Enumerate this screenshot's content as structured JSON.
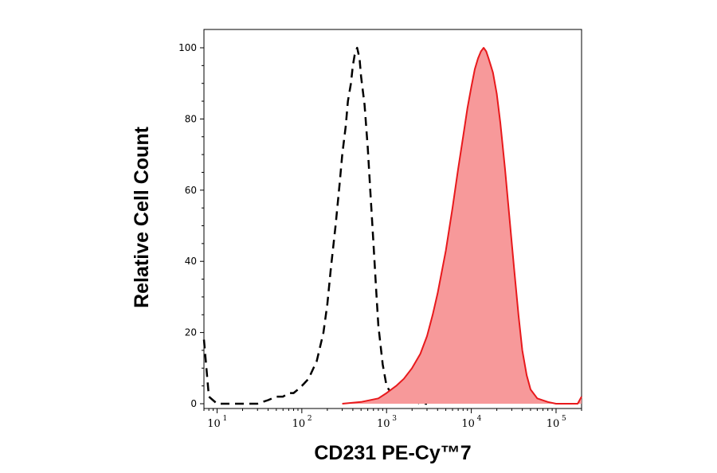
{
  "chart_data": {
    "type": "area",
    "xlabel": "CD231 PE-Cy™7",
    "ylabel": "Relative Cell Count",
    "x_scale": "log",
    "xlim": [
      7,
      200000
    ],
    "ylim": [
      0,
      100
    ],
    "yticks": [
      "0",
      "20",
      "40",
      "60",
      "80",
      "100"
    ],
    "xticks": [
      {
        "base": "10",
        "exp": "1"
      },
      {
        "base": "10",
        "exp": "2"
      },
      {
        "base": "10",
        "exp": "3"
      },
      {
        "base": "10",
        "exp": "4"
      },
      {
        "base": "10",
        "exp": "5"
      }
    ],
    "grid": false,
    "colors": {
      "stained": "#e8191c",
      "stained_fill": "#f7999a",
      "control": "#000000"
    },
    "series": [
      {
        "style": "dashed-black",
        "x": [
          7,
          8,
          10,
          12,
          20,
          30,
          40,
          50,
          60,
          70,
          80,
          90,
          100,
          120,
          150,
          180,
          200,
          220,
          250,
          280,
          300,
          330,
          350,
          380,
          400,
          420,
          450,
          480,
          500,
          550,
          600,
          650,
          700,
          750,
          800,
          900,
          1000,
          1200,
          1500,
          2000,
          2500,
          3000
        ],
        "y": [
          18,
          2,
          0,
          0,
          0,
          0,
          1,
          2,
          2,
          3,
          3,
          4,
          5,
          7,
          12,
          20,
          28,
          38,
          50,
          62,
          70,
          78,
          85,
          90,
          95,
          98,
          100,
          97,
          92,
          84,
          72,
          58,
          45,
          33,
          22,
          11,
          5,
          2,
          1,
          1,
          0,
          0
        ]
      },
      {
        "style": "filled-red",
        "x": [
          300,
          500,
          800,
          1000,
          1300,
          1600,
          2000,
          2500,
          3000,
          3500,
          4000,
          5000,
          6000,
          7000,
          8000,
          9000,
          10000,
          11000,
          12000,
          13000,
          14000,
          15000,
          16000,
          17000,
          18000,
          20000,
          22000,
          25000,
          28000,
          32000,
          36000,
          40000,
          45000,
          50000,
          60000,
          80000,
          100000,
          180000,
          200000
        ],
        "y": [
          0,
          0.5,
          1.5,
          3,
          5,
          7,
          10,
          14,
          19,
          25,
          31,
          43,
          55,
          66,
          75,
          83,
          89,
          94,
          97,
          99,
          100,
          99,
          97,
          95,
          93,
          87,
          79,
          66,
          53,
          38,
          25,
          15,
          8,
          4,
          1.5,
          0.5,
          0,
          0,
          2
        ]
      }
    ]
  }
}
